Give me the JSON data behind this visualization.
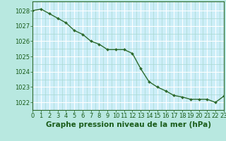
{
  "x": [
    0,
    1,
    2,
    3,
    4,
    5,
    6,
    7,
    8,
    9,
    10,
    11,
    12,
    13,
    14,
    15,
    16,
    17,
    18,
    19,
    20,
    21,
    22,
    23
  ],
  "y": [
    1028.0,
    1028.1,
    1027.8,
    1027.5,
    1027.2,
    1026.7,
    1026.45,
    1026.0,
    1025.8,
    1025.45,
    1025.45,
    1025.45,
    1025.2,
    1024.2,
    1023.35,
    1023.0,
    1022.75,
    1022.45,
    1022.35,
    1022.2,
    1022.2,
    1022.2,
    1022.0,
    1022.4
  ],
  "line_color": "#2d6a2d",
  "marker": "D",
  "markersize": 2.0,
  "linewidth": 1.0,
  "bg_color": "#b8e8e0",
  "plot_bg_color": "#cceef8",
  "grid_major_color": "#ffffff",
  "grid_minor_color": "#a8d8d0",
  "xlabel": "Graphe pression niveau de la mer (hPa)",
  "xlabel_color": "#1a5c1a",
  "xlabel_fontsize": 7.5,
  "tick_color": "#1a5c1a",
  "tick_fontsize": 6.0,
  "ylim": [
    1021.5,
    1028.6
  ],
  "xlim": [
    0,
    23
  ],
  "yticks": [
    1022,
    1023,
    1024,
    1025,
    1026,
    1027,
    1028
  ],
  "xticks": [
    0,
    1,
    2,
    3,
    4,
    5,
    6,
    7,
    8,
    9,
    10,
    11,
    12,
    13,
    14,
    15,
    16,
    17,
    18,
    19,
    20,
    21,
    22,
    23
  ]
}
